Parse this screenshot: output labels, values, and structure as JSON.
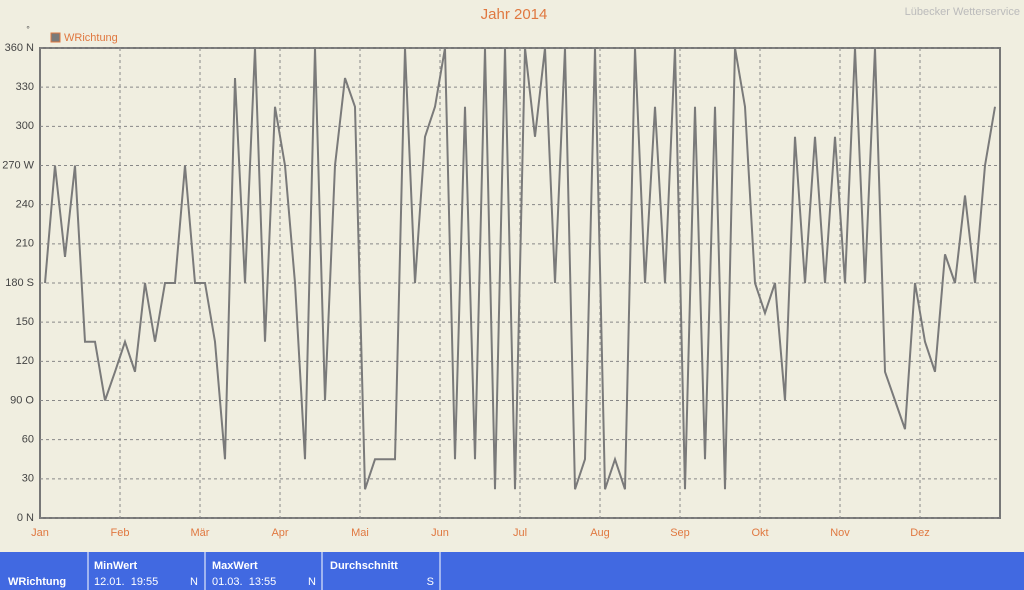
{
  "chart_data": {
    "type": "line",
    "title": "Jahr 2014",
    "source": "Lübecker Wetterservice",
    "y_unit": "°",
    "categories": [
      "Jan",
      null,
      null,
      null,
      null,
      null,
      null,
      null,
      "Feb",
      null,
      null,
      null,
      null,
      null,
      null,
      null,
      "Mär",
      null,
      null,
      null,
      null,
      null,
      null,
      null,
      "Apr",
      null,
      null,
      null,
      null,
      null,
      null,
      null,
      "Mai",
      null,
      null,
      null,
      null,
      null,
      null,
      null,
      "Jun",
      null,
      null,
      null,
      null,
      null,
      null,
      null,
      "Jul",
      null,
      null,
      null,
      null,
      null,
      null,
      null,
      "Aug",
      null,
      null,
      null,
      null,
      null,
      null,
      null,
      "Sep",
      null,
      null,
      null,
      null,
      null,
      null,
      null,
      "Okt",
      null,
      null,
      null,
      null,
      null,
      null,
      null,
      "Nov",
      null,
      null,
      null,
      null,
      null,
      null,
      null,
      "Dez",
      null,
      null,
      null,
      null,
      null,
      null,
      null
    ],
    "series": [
      {
        "name": "WRichtung",
        "color": "#7a7a7a",
        "values": [
          180,
          270,
          200,
          270,
          135,
          135,
          90,
          112,
          135,
          112,
          180,
          135,
          180,
          180,
          270,
          180,
          180,
          135,
          45,
          337,
          180,
          360,
          135,
          315,
          270,
          180,
          45,
          360,
          90,
          270,
          337,
          315,
          22,
          45,
          45,
          45,
          360,
          180,
          292,
          315,
          360,
          45,
          315,
          45,
          360,
          22,
          360,
          22,
          360,
          292,
          360,
          180,
          360,
          22,
          45,
          360,
          22,
          45,
          22,
          360,
          180,
          315,
          180,
          360,
          22,
          315,
          45,
          315,
          22,
          360,
          315,
          180,
          157,
          180,
          90,
          292,
          180,
          292,
          180,
          292,
          180,
          360,
          180,
          360,
          112,
          90,
          68,
          180,
          135,
          112,
          202,
          180,
          247,
          180,
          270,
          315
        ]
      }
    ],
    "ylim": [
      0,
      360
    ],
    "yticks": [
      {
        "value": 0,
        "label": "0 N"
      },
      30,
      60,
      {
        "value": 90,
        "label": "90 O"
      },
      120,
      150,
      {
        "value": 180,
        "label": "180 S"
      },
      210,
      240,
      {
        "value": 270,
        "label": "270 W"
      },
      300,
      330,
      {
        "value": 360,
        "label": "360 N"
      }
    ],
    "grid": true,
    "legend": "top-left"
  },
  "stats": {
    "row_label": "WRichtung",
    "columns": [
      {
        "header": "MinWert",
        "time": "12.01.  19:55",
        "dir": "N"
      },
      {
        "header": "MaxWert",
        "time": "01.03.  13:55",
        "dir": "N"
      },
      {
        "header": "Durchschnitt",
        "dir": "S"
      }
    ]
  }
}
